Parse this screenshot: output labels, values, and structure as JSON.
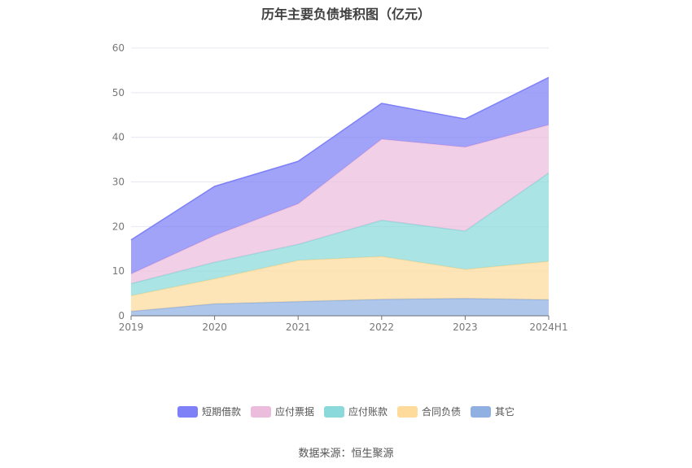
{
  "title": "历年主要负债堆积图（亿元）",
  "source": "数据来源：恒生聚源",
  "chart_data": {
    "type": "area",
    "stacked": true,
    "categories": [
      "2019",
      "2020",
      "2021",
      "2022",
      "2023",
      "2024H1"
    ],
    "ylim": [
      0,
      60
    ],
    "yticks": [
      0,
      10,
      20,
      30,
      40,
      50,
      60
    ],
    "grid": true,
    "legend_position": "bottom",
    "series": [
      {
        "name": "其它",
        "color": "#8fb0e0",
        "values": [
          1.0,
          2.7,
          3.2,
          3.7,
          3.9,
          3.6
        ]
      },
      {
        "name": "合同负债",
        "color": "#fedb9b",
        "values": [
          3.5,
          5.6,
          9.2,
          9.6,
          6.5,
          8.6
        ]
      },
      {
        "name": "应付账款",
        "color": "#8bd9db",
        "values": [
          2.7,
          3.7,
          3.6,
          8.1,
          8.6,
          19.8
        ]
      },
      {
        "name": "应付票据",
        "color": "#ecbcdc",
        "values": [
          2.2,
          6.0,
          9.1,
          18.2,
          18.8,
          10.8
        ]
      },
      {
        "name": "短期借款",
        "color": "#7d80f7",
        "values": [
          7.6,
          11.0,
          9.5,
          8.0,
          6.3,
          10.6
        ]
      }
    ],
    "legend_order": [
      "短期借款",
      "应付票据",
      "应付账款",
      "合同负债",
      "其它"
    ]
  }
}
